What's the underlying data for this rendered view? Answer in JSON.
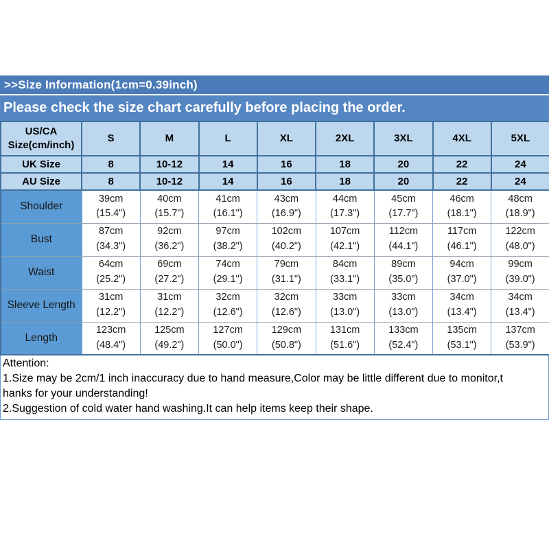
{
  "banner1": {
    "text": ">>Size Information(1cm=0.39inch)",
    "bg": "#4a7ab8"
  },
  "banner2": {
    "text": "Please check the size chart carefully before placing the order.",
    "bg": "#5586c4"
  },
  "colors": {
    "banner_dark_blue": "#4a7ab8",
    "banner_blue": "#5586c4",
    "header_cell_bg": "#bdd7ee",
    "row_label_bg": "#5b9bd5",
    "grid_dark": "#41719c",
    "grid_light": "#7ba3d4",
    "text": "#000000"
  },
  "table": {
    "header_label": "US/CA Size(cm/inch)",
    "size_columns": [
      "S",
      "M",
      "L",
      "XL",
      "2XL",
      "3XL",
      "4XL",
      "5XL"
    ],
    "uk_row": {
      "label": "UK Size",
      "values": [
        "8",
        "10-12",
        "14",
        "16",
        "18",
        "20",
        "22",
        "24"
      ]
    },
    "au_row": {
      "label": "AU Size",
      "values": [
        "8",
        "10-12",
        "14",
        "16",
        "18",
        "20",
        "22",
        "24"
      ]
    },
    "rows": [
      {
        "label": "Shoulder",
        "cm": [
          "39cm",
          "40cm",
          "41cm",
          "43cm",
          "44cm",
          "45cm",
          "46cm",
          "48cm"
        ],
        "inch": [
          "(15.4\")",
          "(15.7\")",
          "(16.1\")",
          "(16.9\")",
          "(17.3\")",
          "(17.7\")",
          "(18.1\")",
          "(18.9\")"
        ]
      },
      {
        "label": "Bust",
        "cm": [
          "87cm",
          "92cm",
          "97cm",
          "102cm",
          "107cm",
          "112cm",
          "117cm",
          "122cm"
        ],
        "inch": [
          "(34.3\")",
          "(36.2\")",
          "(38.2\")",
          "(40.2\")",
          "(42.1\")",
          "(44.1\")",
          "(46.1\")",
          "(48.0\")"
        ]
      },
      {
        "label": "Waist",
        "cm": [
          "64cm",
          "69cm",
          "74cm",
          "79cm",
          "84cm",
          "89cm",
          "94cm",
          "99cm"
        ],
        "inch": [
          "(25.2\")",
          "(27.2\")",
          "(29.1\")",
          "(31.1\")",
          "(33.1\")",
          "(35.0\")",
          "(37.0\")",
          "(39.0\")"
        ]
      },
      {
        "label": "Sleeve Length",
        "cm": [
          "31cm",
          "31cm",
          "32cm",
          "32cm",
          "33cm",
          "33cm",
          "34cm",
          "34cm"
        ],
        "inch": [
          "(12.2\")",
          "(12.2\")",
          "(12.6\")",
          "(12.6\")",
          "(13.0\")",
          "(13.0\")",
          "(13.4\")",
          "(13.4\")"
        ]
      },
      {
        "label": "Length",
        "cm": [
          "123cm",
          "125cm",
          "127cm",
          "129cm",
          "131cm",
          "133cm",
          "135cm",
          "137cm"
        ],
        "inch": [
          "(48.4\")",
          "(49.2\")",
          "(50.0\")",
          "(50.8\")",
          "(51.6\")",
          "(52.4\")",
          "(53.1\")",
          "(53.9\")"
        ]
      }
    ]
  },
  "attention": {
    "line1": "Attention:",
    "line2": "1.Size may be 2cm/1 inch inaccuracy due to hand measure,Color may be little different due to monitor,t",
    "line3": "hanks for your understanding!",
    "line4": "2.Suggestion of cold water hand washing.It can help items keep their shape."
  }
}
